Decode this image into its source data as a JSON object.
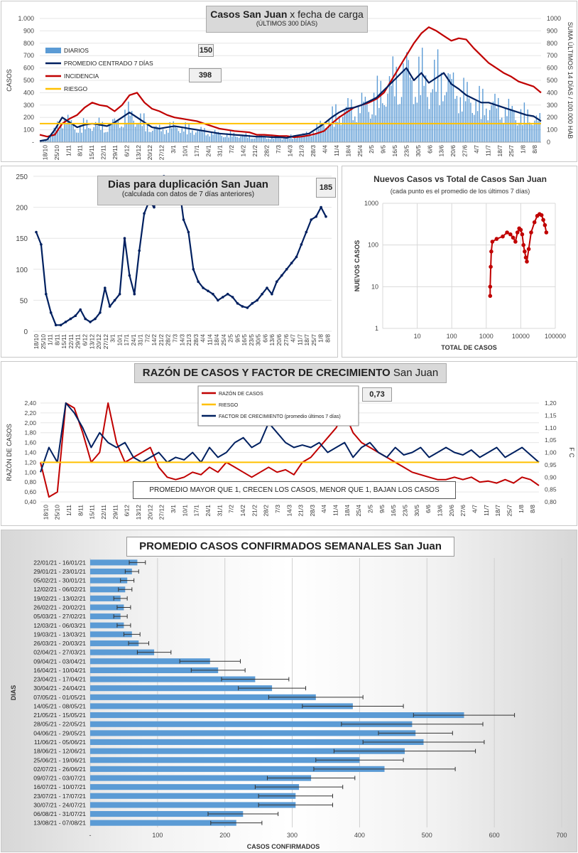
{
  "chart_data": [
    {
      "id": "c1",
      "type": "line",
      "title": "Casos San Juan",
      "title_suffix": "x fecha de carga",
      "subtitle": "(ÚLTIMOS 300 DÍAS)",
      "ylabel": "CASOS",
      "y2label": "SUMA ÚLTIMOS 14 DÍAS / 100.000 HAB",
      "ylim": [
        0,
        1000
      ],
      "y2lim": [
        0,
        1000
      ],
      "yticks": [
        "-",
        "100",
        "200",
        "300",
        "400",
        "500",
        "600",
        "700",
        "800",
        "900",
        "1.000"
      ],
      "y2ticks": [
        "0",
        "100",
        "200",
        "300",
        "400",
        "500",
        "600",
        "700",
        "800",
        "900",
        "1000"
      ],
      "xticks": [
        "18/10",
        "25/10",
        "1/11",
        "8/11",
        "15/11",
        "22/11",
        "29/11",
        "6/12",
        "13/12",
        "20/12",
        "27/12",
        "3/1",
        "10/1",
        "17/1",
        "24/1",
        "31/1",
        "7/2",
        "14/2",
        "21/2",
        "28/2",
        "7/3",
        "14/3",
        "21/3",
        "28/3",
        "4/4",
        "11/4",
        "18/4",
        "25/4",
        "2/5",
        "9/5",
        "16/5",
        "23/5",
        "30/5",
        "6/6",
        "13/6",
        "20/6",
        "27/6",
        "4/7",
        "11/7",
        "18/7",
        "25/7",
        "1/8",
        "8/8"
      ],
      "legend": [
        "DIARIOS",
        "PROMEDIO CENTRADO 7 DÍAS",
        "INCIDENCIA",
        "RIESGO"
      ],
      "annotations": [
        "150",
        "398"
      ],
      "risk_level": 150,
      "series": [
        {
          "name": "INCIDENCIA",
          "color": "#c00000",
          "values": [
            60,
            45,
            60,
            150,
            190,
            220,
            280,
            320,
            300,
            290,
            250,
            300,
            380,
            400,
            320,
            270,
            250,
            220,
            200,
            190,
            180,
            170,
            150,
            130,
            110,
            100,
            90,
            85,
            80,
            60,
            60,
            55,
            50,
            50,
            40,
            45,
            55,
            70,
            90,
            150,
            200,
            240,
            280,
            300,
            320,
            350,
            400,
            500,
            600,
            700,
            800,
            880,
            930,
            900,
            860,
            820,
            840,
            830,
            760,
            700,
            640,
            600,
            560,
            530,
            490,
            470,
            450,
            400
          ]
        },
        {
          "name": "PROMEDIO CENTRADO 7 DÍAS",
          "color": "#002060",
          "values": [
            10,
            20,
            100,
            200,
            160,
            120,
            140,
            150,
            140,
            130,
            160,
            200,
            240,
            200,
            160,
            120,
            110,
            120,
            130,
            120,
            110,
            100,
            90,
            80,
            70,
            65,
            60,
            55,
            50,
            45,
            45,
            40,
            40,
            35,
            50,
            60,
            70,
            110,
            150,
            200,
            240,
            270,
            280,
            300,
            330,
            360,
            420,
            480,
            540,
            600,
            500,
            560,
            480,
            520,
            560,
            470,
            430,
            380,
            350,
            320,
            320,
            300,
            280,
            260,
            240,
            220,
            210,
            170
          ]
        },
        {
          "name": "RIESGO",
          "color": "#ffc000",
          "values": [
            150,
            150
          ]
        }
      ]
    },
    {
      "id": "c2",
      "type": "line",
      "title": "Dias para duplicación San Juan",
      "subtitle": "(calculada con datos de 7 días anteriores)",
      "annotation": "185",
      "ylim": [
        0,
        250
      ],
      "yticks": [
        "0",
        "50",
        "100",
        "150",
        "200",
        "250"
      ],
      "xticks": [
        "18/10",
        "25/10",
        "1/11",
        "8/11",
        "15/11",
        "22/11",
        "29/11",
        "6/12",
        "13/12",
        "20/12",
        "27/12",
        "3/1",
        "10/1",
        "17/1",
        "24/1",
        "31/1",
        "7/2",
        "14/2",
        "21/2",
        "28/2",
        "7/3",
        "14/3",
        "21/3",
        "28/3",
        "4/4",
        "11/4",
        "18/4",
        "25/4",
        "2/5",
        "9/5",
        "16/5",
        "23/5",
        "30/5",
        "6/6",
        "13/6",
        "20/6",
        "27/6",
        "4/7",
        "11/7",
        "18/7",
        "25/7",
        "1/8",
        "8/8"
      ],
      "series": [
        {
          "name": "",
          "color": "#002060",
          "values": [
            160,
            140,
            60,
            30,
            10,
            10,
            15,
            20,
            25,
            35,
            20,
            15,
            20,
            30,
            70,
            40,
            50,
            60,
            150,
            90,
            60,
            130,
            190,
            210,
            200,
            230,
            250,
            230,
            210,
            240,
            180,
            160,
            100,
            80,
            70,
            65,
            60,
            50,
            55,
            60,
            55,
            45,
            40,
            38,
            45,
            50,
            60,
            70,
            60,
            80,
            90,
            100,
            110,
            120,
            140,
            160,
            180,
            185,
            200,
            185
          ]
        }
      ]
    },
    {
      "id": "c3",
      "type": "scatter",
      "title": "Nuevos Casos vs Total de Casos San Juan",
      "subtitle": "(cada punto es el promedio de los últimos 7 días)",
      "xlabel": "TOTAL DE CASOS",
      "ylabel": "NUEVOS CASOS",
      "xscale": "log",
      "yscale": "log",
      "xlim": [
        1,
        100000
      ],
      "ylim": [
        1,
        1000
      ],
      "xticks": [
        "1",
        "10",
        "100",
        "1000",
        "10000",
        "100000"
      ],
      "yticks": [
        "1",
        "10",
        "100",
        "1000"
      ],
      "series": [
        {
          "name": "",
          "color": "#c00000",
          "points": [
            [
              1300,
              6
            ],
            [
              1300,
              10
            ],
            [
              1350,
              30
            ],
            [
              1400,
              70
            ],
            [
              1500,
              120
            ],
            [
              2000,
              140
            ],
            [
              3000,
              160
            ],
            [
              4000,
              200
            ],
            [
              5000,
              180
            ],
            [
              6000,
              150
            ],
            [
              7000,
              120
            ],
            [
              8000,
              200
            ],
            [
              9000,
              250
            ],
            [
              10000,
              230
            ],
            [
              11000,
              180
            ],
            [
              12000,
              100
            ],
            [
              13000,
              70
            ],
            [
              14000,
              50
            ],
            [
              15000,
              40
            ],
            [
              17000,
              80
            ],
            [
              20000,
              200
            ],
            [
              25000,
              350
            ],
            [
              30000,
              500
            ],
            [
              35000,
              550
            ],
            [
              40000,
              520
            ],
            [
              45000,
              400
            ],
            [
              50000,
              300
            ],
            [
              55000,
              200
            ]
          ]
        }
      ]
    },
    {
      "id": "c4",
      "type": "line",
      "title": "RAZÓN DE CASOS Y FACTOR DE CRECIMIENTO",
      "title_suffix": "San Juan",
      "ylabel": "RAZÓN DE CASOS",
      "y2label": "F C",
      "ylim": [
        0.4,
        2.4
      ],
      "y2lim": [
        0.8,
        1.2
      ],
      "yticks": [
        "0,40",
        "0,60",
        "0,80",
        "1,00",
        "1,20",
        "1,40",
        "1,60",
        "1,80",
        "2,00",
        "2,20",
        "2,40"
      ],
      "y2ticks": [
        "0,80",
        "0,85",
        "0,90",
        "0,95",
        "1,00",
        "1,05",
        "1,10",
        "1,15",
        "1,20"
      ],
      "xticks": [
        "18/10",
        "25/10",
        "1/11",
        "8/11",
        "15/11",
        "22/11",
        "29/11",
        "6/12",
        "13/12",
        "20/12",
        "27/12",
        "3/1",
        "10/1",
        "17/1",
        "24/1",
        "31/1",
        "7/2",
        "14/2",
        "21/2",
        "28/2",
        "7/3",
        "14/3",
        "21/3",
        "28/3",
        "4/4",
        "11/4",
        "18/4",
        "25/4",
        "2/5",
        "9/5",
        "16/5",
        "23/5",
        "30/5",
        "6/6",
        "13/6",
        "20/6",
        "27/6",
        "4/7",
        "11/7",
        "18/7",
        "25/7",
        "1/8",
        "8/8"
      ],
      "legend": [
        "RAZÓN DE CASOS",
        "RIESGO",
        "FACTOR DE CRECIMIENTO (promedio últimos 7 días)"
      ],
      "annotation": "0,73",
      "note": "PROMEDIO MAYOR QUE 1, CRECEN LOS CASOS, MENOR QUE 1, BAJAN LOS CASOS",
      "risk_level": 1.2,
      "series": [
        {
          "name": "RAZÓN DE CASOS",
          "color": "#c00000",
          "values": [
            1.2,
            0.5,
            0.6,
            2.4,
            2.3,
            1.8,
            1.2,
            1.4,
            2.4,
            1.6,
            1.2,
            1.3,
            1.4,
            1.5,
            1.1,
            0.9,
            0.85,
            0.9,
            1.0,
            0.95,
            1.1,
            1.0,
            1.2,
            1.1,
            1.0,
            0.9,
            1.0,
            1.1,
            1.0,
            1.05,
            0.95,
            1.2,
            1.3,
            1.5,
            1.7,
            1.9,
            2.2,
            1.8,
            1.6,
            1.5,
            1.4,
            1.3,
            1.2,
            1.1,
            1.0,
            0.95,
            0.9,
            0.85,
            0.85,
            0.9,
            0.85,
            0.9,
            0.8,
            0.82,
            0.78,
            0.85,
            0.78,
            0.9,
            0.85,
            0.73
          ]
        },
        {
          "name": "FACTOR DE CRECIMIENTO (promedio últimos 7 días)",
          "color": "#002060",
          "values": [
            1.0,
            1.5,
            1.2,
            2.4,
            2.2,
            1.9,
            1.5,
            1.8,
            1.6,
            1.5,
            1.6,
            1.3,
            1.2,
            1.3,
            1.4,
            1.2,
            1.3,
            1.25,
            1.4,
            1.2,
            1.5,
            1.3,
            1.4,
            1.6,
            1.7,
            1.5,
            1.6,
            2.0,
            1.8,
            1.6,
            1.5,
            1.55,
            1.5,
            1.6,
            1.4,
            1.5,
            1.6,
            1.3,
            1.5,
            1.6,
            1.4,
            1.3,
            1.5,
            1.35,
            1.4,
            1.5,
            1.3,
            1.4,
            1.5,
            1.4,
            1.35,
            1.45,
            1.3,
            1.4,
            1.5,
            1.3,
            1.4,
            1.5,
            1.35,
            1.2
          ]
        },
        {
          "name": "RIESGO",
          "color": "#ffc000",
          "values": [
            1.2,
            1.2
          ]
        }
      ]
    },
    {
      "id": "c5",
      "type": "bar",
      "orientation": "horizontal",
      "title": "PROMEDIO CASOS CONFIRMADOS SEMANALES San Juan",
      "xlabel": "CASOS CONFIRMADOS",
      "ylabel": "DIAS",
      "xlim": [
        0,
        700
      ],
      "xticks": [
        "-",
        "100",
        "200",
        "300",
        "400",
        "500",
        "600",
        "700"
      ],
      "categories": [
        "22/01/21 - 16/01/21",
        "29/01/21 - 23/01/21",
        "05/02/21 - 30/01/21",
        "12/02/21 - 06/02/21",
        "19/02/21 - 13/02/21",
        "26/02/21 - 20/02/21",
        "05/03/21 - 27/02/21",
        "12/03/21 - 06/03/21",
        "19/03/21 - 13/03/21",
        "26/03/21 - 20/03/21",
        "02/04/21 - 27/03/21",
        "09/04/21 - 03/04/21",
        "16/04/21 - 10/04/21",
        "23/04/21 - 17/04/21",
        "30/04/21 - 24/04/21",
        "07/05/21 - 01/05/21",
        "14/05/21 - 08/05/21",
        "21/05/21 - 15/05/21",
        "28/05/21 - 22/05/21",
        "04/06/21 - 29/05/21",
        "11/06/21 - 05/06/21",
        "18/06/21 - 12/06/21",
        "25/06/21 - 19/06/21",
        "02/07/21 - 26/06/21",
        "09/07/21 - 03/07/21",
        "16/07/21 - 10/07/21",
        "23/07/21 - 17/07/21",
        "30/07/21 - 24/07/21",
        "06/08/21 - 31/07/21",
        "13/08/21 - 07/08/21"
      ],
      "values": [
        70,
        62,
        55,
        52,
        45,
        50,
        45,
        50,
        62,
        72,
        95,
        178,
        190,
        245,
        270,
        335,
        390,
        555,
        478,
        483,
        495,
        467,
        400,
        437,
        328,
        310,
        305,
        305,
        227,
        217
      ],
      "errors": [
        12,
        10,
        10,
        10,
        10,
        10,
        10,
        10,
        12,
        15,
        25,
        45,
        40,
        50,
        50,
        70,
        75,
        75,
        105,
        55,
        90,
        105,
        65,
        105,
        65,
        65,
        55,
        55,
        52,
        38
      ],
      "color": "#5b9bd5"
    }
  ]
}
